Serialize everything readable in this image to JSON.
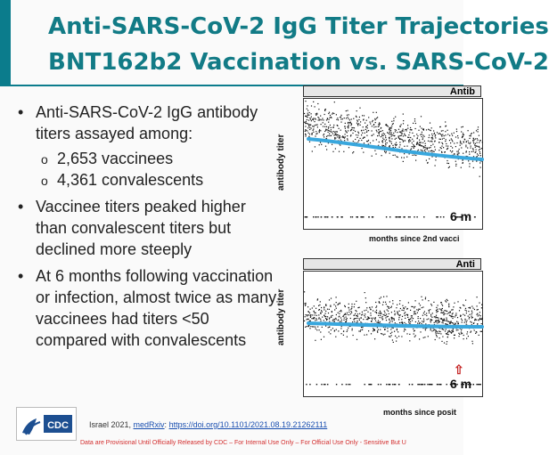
{
  "title": {
    "line1": "Anti-SARS-CoV-2 IgG Titer Trajectories",
    "line2": "BNT162b2 Vaccination vs. SARS-CoV-2"
  },
  "bullets": [
    {
      "text": "Anti-SARS-CoV-2 IgG antibody titers assayed among:",
      "subs": [
        "2,653 vaccinees",
        "4,361 convalescents"
      ]
    },
    {
      "text": "Vaccinee titers peaked higher than convalescent titers but declined more steeply",
      "subs": []
    },
    {
      "text": "At 6 months following vaccination or infection, almost twice as many vaccinees had titers <50 compared with convalescents",
      "subs": []
    }
  ],
  "panel_top": {
    "header": "Antib",
    "ylabel": "antibody titer",
    "xlabel": "months since 2nd vacci",
    "annotation": "6 m"
  },
  "panel_bottom": {
    "header": "Anti",
    "ylabel": "antibody titer",
    "xlabel": "months since posit",
    "annotation": "6 m"
  },
  "footer": {
    "logo_text": "CDC",
    "cite_prefix": "Israel 2021, ",
    "cite_source": "medRxiv",
    "cite_colon": ": ",
    "cite_link": "https://doi.org/10.1101/2021.08.19.21262111",
    "disclaimer": "Data are Provisional Until Officially Released by CDC – For Internal Use Only – For Official Use Only - Sensitive But U"
  },
  "colors": {
    "teal": "#127b86",
    "trend": "#39a7dd",
    "red": "#d32f2f"
  }
}
